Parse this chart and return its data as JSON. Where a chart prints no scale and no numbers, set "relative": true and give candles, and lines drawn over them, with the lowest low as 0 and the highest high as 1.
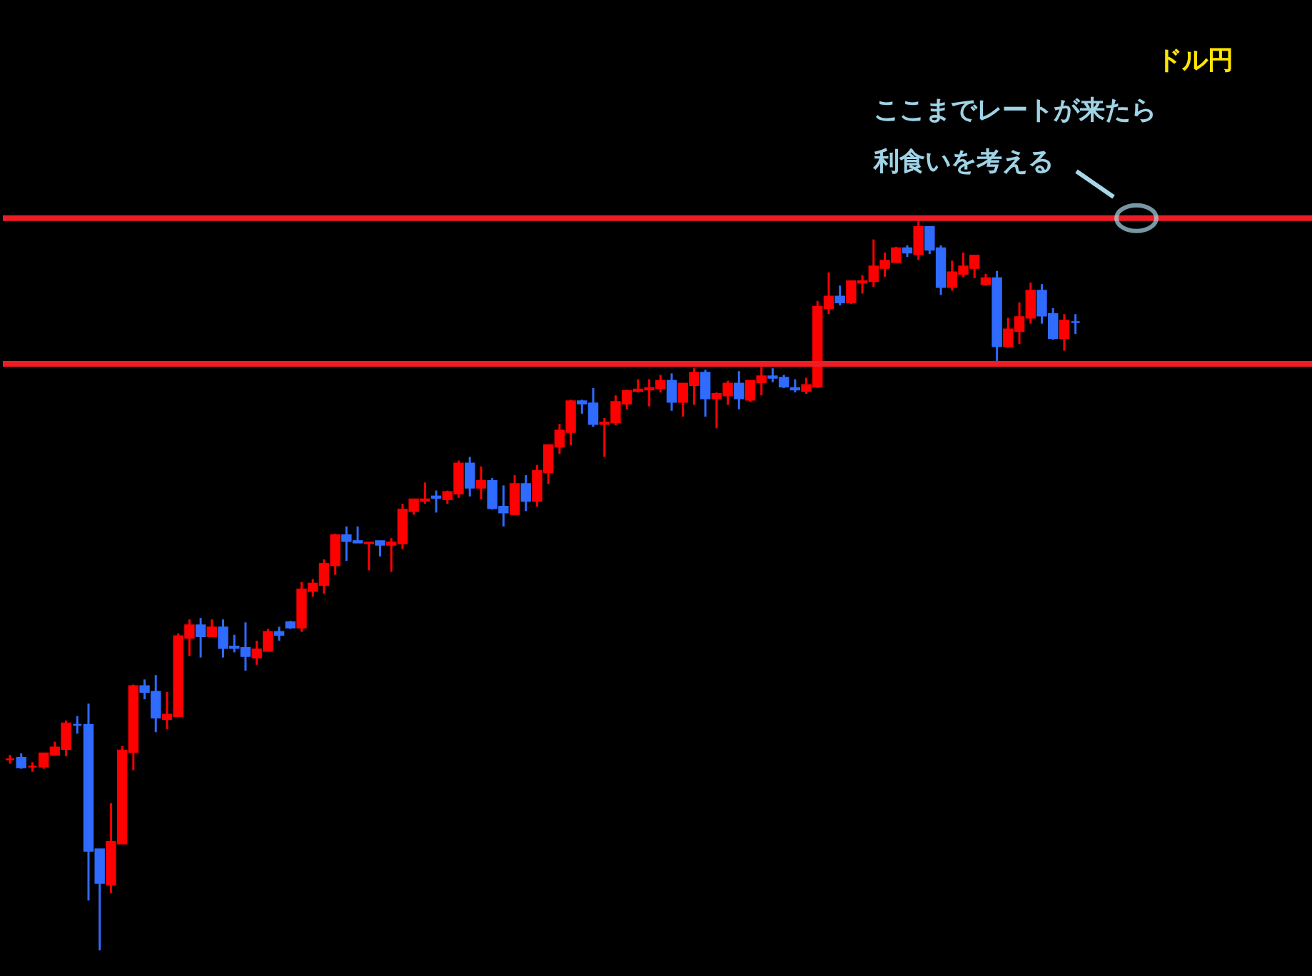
{
  "chart_data": {
    "type": "candlestick",
    "title": "ドル円",
    "relative": true,
    "categories": [
      null,
      null,
      null,
      null,
      null,
      null,
      null,
      null,
      null,
      null,
      null,
      null,
      null,
      null,
      null,
      null,
      null,
      null,
      null,
      null,
      null,
      null,
      null,
      null,
      null,
      null,
      null,
      null,
      null,
      null,
      null,
      null,
      null,
      null,
      null,
      null,
      null,
      null,
      null,
      null,
      null,
      null,
      null,
      null,
      null,
      null,
      null,
      null,
      null,
      null,
      null,
      null,
      null,
      null,
      null,
      null,
      null,
      null,
      null,
      null,
      null,
      null,
      null,
      null,
      null,
      null,
      null,
      null,
      null,
      null,
      null,
      null,
      null,
      null,
      null,
      null,
      null,
      null,
      null,
      null,
      null,
      null,
      null,
      null,
      null,
      null,
      null,
      null,
      null,
      null,
      null,
      null,
      null,
      null,
      null,
      null
    ],
    "ohlc": [
      [
        0.261,
        0.267,
        0.255,
        0.261
      ],
      [
        0.263,
        0.269,
        0.248,
        0.25
      ],
      [
        0.251,
        0.257,
        0.244,
        0.251
      ],
      [
        0.251,
        0.269,
        0.248,
        0.269
      ],
      [
        0.267,
        0.285,
        0.267,
        0.277
      ],
      [
        0.275,
        0.314,
        0.265,
        0.31
      ],
      [
        0.308,
        0.32,
        0.296,
        0.308
      ],
      [
        0.308,
        0.337,
        0.068,
        0.136
      ],
      [
        0.138,
        0.138,
        0,
        0.092
      ],
      [
        0.09,
        0.201,
        0.078,
        0.148
      ],
      [
        0.146,
        0.279,
        0.146,
        0.273
      ],
      [
        0.271,
        0.363,
        0.246,
        0.361
      ],
      [
        0.361,
        0.37,
        0.343,
        0.353
      ],
      [
        0.353,
        0.376,
        0.298,
        0.318
      ],
      [
        0.316,
        0.353,
        0.302,
        0.322
      ],
      [
        0.32,
        0.433,
        0.32,
        0.429
      ],
      [
        0.427,
        0.452,
        0.402,
        0.444
      ],
      [
        0.444,
        0.454,
        0.4,
        0.429
      ],
      [
        0.429,
        0.452,
        0.429,
        0.441
      ],
      [
        0.441,
        0.452,
        0.4,
        0.413
      ],
      [
        0.415,
        0.431,
        0.407,
        0.413
      ],
      [
        0.413,
        0.448,
        0.382,
        0.402
      ],
      [
        0.4,
        0.423,
        0.39,
        0.411
      ],
      [
        0.409,
        0.439,
        0.409,
        0.435
      ],
      [
        0.435,
        0.442,
        0.423,
        0.431
      ],
      [
        0.448,
        0.45,
        0.439,
        0.441
      ],
      [
        0.441,
        0.503,
        0.435,
        0.493
      ],
      [
        0.491,
        0.507,
        0.483,
        0.501
      ],
      [
        0.499,
        0.534,
        0.487,
        0.528
      ],
      [
        0.526,
        0.569,
        0.513,
        0.567
      ],
      [
        0.567,
        0.579,
        0.532,
        0.559
      ],
      [
        0.559,
        0.579,
        0.557,
        0.557
      ],
      [
        0.556,
        0.557,
        0.519,
        0.557
      ],
      [
        0.559,
        0.559,
        0.538,
        0.554
      ],
      [
        0.554,
        0.563,
        0.517,
        0.557
      ],
      [
        0.556,
        0.61,
        0.548,
        0.602
      ],
      [
        0.6,
        0.616,
        0.595,
        0.616
      ],
      [
        0.614,
        0.639,
        0.61,
        0.616
      ],
      [
        0.62,
        0.628,
        0.598,
        0.618
      ],
      [
        0.616,
        0.628,
        0.61,
        0.626
      ],
      [
        0.624,
        0.669,
        0.618,
        0.665
      ],
      [
        0.665,
        0.674,
        0.62,
        0.632
      ],
      [
        0.632,
        0.661,
        0.616,
        0.641
      ],
      [
        0.641,
        0.645,
        0.602,
        0.604
      ],
      [
        0.606,
        0.635,
        0.579,
        0.598
      ],
      [
        0.596,
        0.649,
        0.595,
        0.637
      ],
      [
        0.637,
        0.649,
        0.6,
        0.614
      ],
      [
        0.614,
        0.663,
        0.606,
        0.655
      ],
      [
        0.653,
        0.69,
        0.637,
        0.69
      ],
      [
        0.688,
        0.719,
        0.678,
        0.71
      ],
      [
        0.708,
        0.752,
        0.69,
        0.75
      ],
      [
        0.75,
        0.752,
        0.733,
        0.747
      ],
      [
        0.747,
        0.768,
        0.715,
        0.719
      ],
      [
        0.719,
        0.727,
        0.674,
        0.721
      ],
      [
        0.721,
        0.758,
        0.717,
        0.749
      ],
      [
        0.747,
        0.766,
        0.739,
        0.764
      ],
      [
        0.764,
        0.78,
        0.762,
        0.766
      ],
      [
        0.766,
        0.78,
        0.743,
        0.768
      ],
      [
        0.768,
        0.786,
        0.762,
        0.778
      ],
      [
        0.778,
        0.788,
        0.737,
        0.749
      ],
      [
        0.749,
        0.774,
        0.729,
        0.774
      ],
      [
        0.772,
        0.795,
        0.745,
        0.789
      ],
      [
        0.789,
        0.793,
        0.729,
        0.754
      ],
      [
        0.754,
        0.762,
        0.713,
        0.76
      ],
      [
        0.758,
        0.778,
        0.745,
        0.774
      ],
      [
        0.774,
        0.791,
        0.739,
        0.754
      ],
      [
        0.752,
        0.778,
        0.749,
        0.778
      ],
      [
        0.776,
        0.797,
        0.758,
        0.784
      ],
      [
        0.784,
        0.795,
        0.776,
        0.782
      ],
      [
        0.782,
        0.786,
        0.768,
        0.77
      ],
      [
        0.768,
        0.78,
        0.762,
        0.766
      ],
      [
        0.764,
        0.782,
        0.76,
        0.772
      ],
      [
        0.77,
        0.887,
        0.768,
        0.879
      ],
      [
        0.877,
        0.926,
        0.869,
        0.893
      ],
      [
        0.893,
        0.908,
        0.881,
        0.885
      ],
      [
        0.885,
        0.914,
        0.883,
        0.914
      ],
      [
        0.912,
        0.922,
        0.897,
        0.914
      ],
      [
        0.914,
        0.971,
        0.906,
        0.934
      ],
      [
        0.932,
        0.953,
        0.92,
        0.942
      ],
      [
        0.94,
        0.961,
        0.94,
        0.959
      ],
      [
        0.959,
        0.963,
        0.947,
        0.953
      ],
      [
        0.951,
        1,
        0.943,
        0.988
      ],
      [
        0.988,
        0.988,
        0.951,
        0.957
      ],
      [
        0.959,
        0.963,
        0.895,
        0.906
      ],
      [
        0.906,
        0.942,
        0.901,
        0.926
      ],
      [
        0.924,
        0.953,
        0.92,
        0.934
      ],
      [
        0.932,
        0.949,
        0.918,
        0.949
      ],
      [
        0.91,
        0.924,
        0.908,
        0.918
      ],
      [
        0.918,
        0.928,
        0.805,
        0.825
      ],
      [
        0.825,
        0.864,
        0.823,
        0.848
      ],
      [
        0.846,
        0.885,
        0.828,
        0.865
      ],
      [
        0.864,
        0.912,
        0.856,
        0.901
      ],
      [
        0.901,
        0.91,
        0.856,
        0.867
      ],
      [
        0.869,
        0.877,
        0.834,
        0.836
      ],
      [
        0.836,
        0.869,
        0.819,
        0.86
      ],
      [
        0.858,
        0.869,
        0.842,
        0.858
      ]
    ],
    "colors": [
      "#ff0000",
      "#2f6bff",
      "#ff0000",
      "#ff0000",
      "#ff0000",
      "#ff0000",
      "#2f6bff",
      "#2f6bff",
      "#2f6bff",
      "#ff0000",
      "#ff0000",
      "#ff0000",
      "#2f6bff",
      "#2f6bff",
      "#ff0000",
      "#ff0000",
      "#ff0000",
      "#2f6bff",
      "#ff0000",
      "#2f6bff",
      "#2f6bff",
      "#2f6bff",
      "#ff0000",
      "#ff0000",
      "#2f6bff",
      "#2f6bff",
      "#ff0000",
      "#ff0000",
      "#ff0000",
      "#ff0000",
      "#2f6bff",
      "#2f6bff",
      "#ff0000",
      "#2f6bff",
      "#ff0000",
      "#ff0000",
      "#ff0000",
      "#ff0000",
      "#2f6bff",
      "#ff0000",
      "#ff0000",
      "#2f6bff",
      "#ff0000",
      "#2f6bff",
      "#2f6bff",
      "#ff0000",
      "#2f6bff",
      "#ff0000",
      "#ff0000",
      "#ff0000",
      "#ff0000",
      "#2f6bff",
      "#2f6bff",
      "#ff0000",
      "#ff0000",
      "#ff0000",
      "#ff0000",
      "#ff0000",
      "#ff0000",
      "#2f6bff",
      "#ff0000",
      "#ff0000",
      "#2f6bff",
      "#ff0000",
      "#ff0000",
      "#2f6bff",
      "#ff0000",
      "#ff0000",
      "#2f6bff",
      "#2f6bff",
      "#2f6bff",
      "#ff0000",
      "#ff0000",
      "#ff0000",
      "#2f6bff",
      "#ff0000",
      "#ff0000",
      "#ff0000",
      "#ff0000",
      "#ff0000",
      "#2f6bff",
      "#ff0000",
      "#2f6bff",
      "#2f6bff",
      "#ff0000",
      "#ff0000",
      "#ff0000",
      "#ff0000",
      "#2f6bff",
      "#ff0000",
      "#ff0000",
      "#ff0000",
      "#2f6bff",
      "#2f6bff",
      "#ff0000",
      "#2f6bff"
    ],
    "ref_lines": [
      {
        "axis": "y",
        "value": 1.0,
        "color": "#ee1c25"
      },
      {
        "axis": "y",
        "value": 0.801,
        "color": "#ee1c25"
      }
    ],
    "annotations": [
      "ここまでレートが来たら",
      "利食いを考える"
    ]
  }
}
